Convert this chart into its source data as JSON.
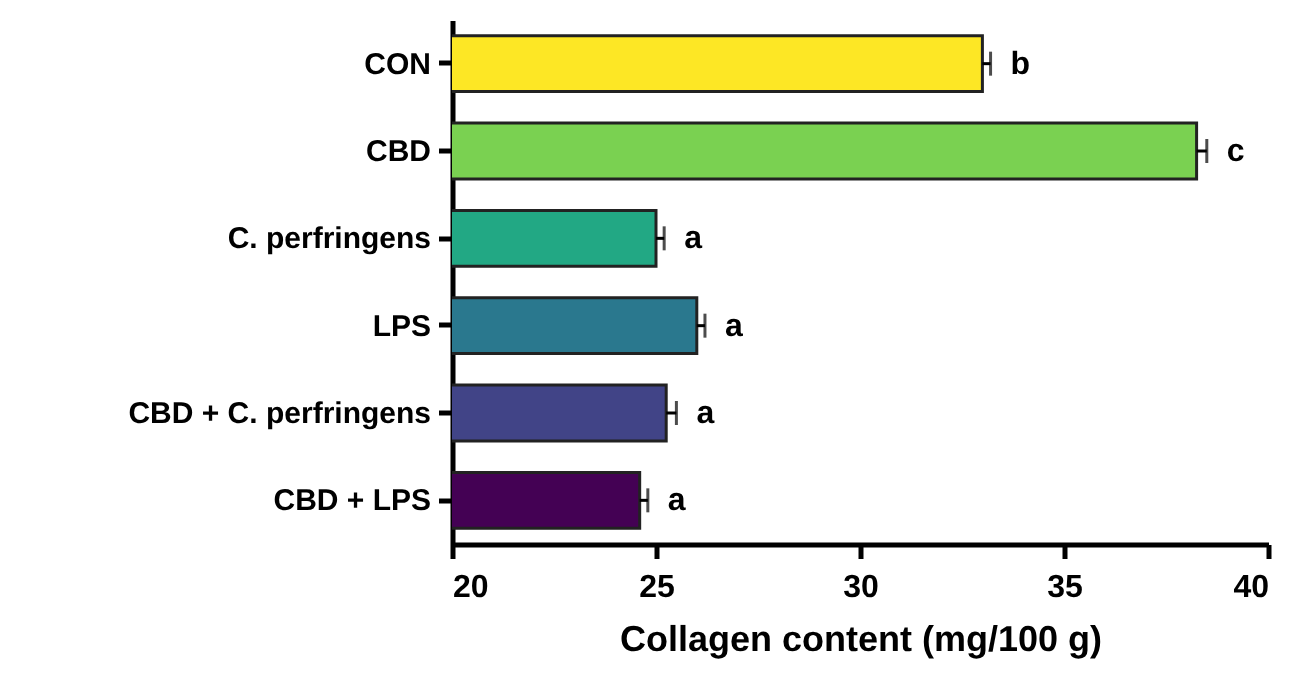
{
  "chart_data": {
    "type": "bar",
    "orientation": "horizontal",
    "xlabel": "Collagen content (mg/100 g)",
    "categories": [
      "CON",
      "CBD",
      "C. perfringens",
      "LPS",
      "CBD + C. perfringens",
      "CBD + LPS"
    ],
    "values": [
      33.0,
      38.25,
      25.0,
      26.0,
      25.25,
      24.6
    ],
    "colors": [
      "#fde725",
      "#7ad151",
      "#22a884",
      "#2a788e",
      "#414487",
      "#440154"
    ],
    "errors": [
      [
        33.0,
        33.2
      ],
      [
        38.25,
        38.5
      ],
      [
        25.0,
        25.2
      ],
      [
        26.0,
        26.2
      ],
      [
        25.25,
        25.5
      ],
      [
        24.6,
        24.8
      ]
    ],
    "value_labels": [
      "b",
      "c",
      "a",
      "a",
      "a",
      "a"
    ],
    "xlim": [
      20,
      40
    ],
    "xticks": [
      20,
      25,
      30,
      35,
      40
    ],
    "grid": false
  }
}
